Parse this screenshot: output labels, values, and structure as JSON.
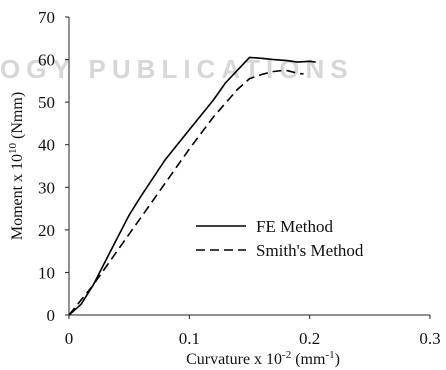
{
  "watermark": {
    "text": "OGY PUBLICATIONS"
  },
  "chart_data": {
    "type": "line",
    "xlabel": "Curvature x 10",
    "xlabel_exp": "-2",
    "xlabel_unit_prefix": " (mm",
    "xlabel_unit_exp": "-1",
    "xlabel_unit_suffix": ")",
    "ylabel": "Moment x 10",
    "ylabel_exp": "10",
    "ylabel_suffix": " (Nmm)",
    "xlim": [
      0,
      0.3
    ],
    "ylim": [
      0,
      70
    ],
    "xticks": [
      0,
      0.1,
      0.2,
      0.3
    ],
    "xtick_labels": [
      "0",
      "0.1",
      "0.2",
      "0.3"
    ],
    "yticks": [
      0,
      10,
      20,
      30,
      40,
      50,
      60,
      70
    ],
    "ytick_labels": [
      "0",
      "10",
      "20",
      "30",
      "40",
      "50",
      "60",
      "70"
    ],
    "grid": false,
    "legend_position": "center-right",
    "series": [
      {
        "name": "FE Method",
        "dash": "solid",
        "color": "#000000",
        "x": [
          0,
          0.01,
          0.02,
          0.03,
          0.04,
          0.05,
          0.06,
          0.08,
          0.1,
          0.12,
          0.13,
          0.14,
          0.15,
          0.16,
          0.17,
          0.18,
          0.19,
          0.2,
          0.205
        ],
        "y": [
          0,
          2.5,
          7,
          12.5,
          18,
          23.5,
          28,
          36.5,
          43.5,
          50.5,
          54.5,
          57.5,
          60.5,
          60.3,
          60.0,
          59.8,
          59.4,
          59.6,
          59.4
        ]
      },
      {
        "name": "Smith's Method",
        "dash": "dashed",
        "color": "#000000",
        "x": [
          0,
          0.01,
          0.02,
          0.04,
          0.06,
          0.08,
          0.1,
          0.12,
          0.14,
          0.15,
          0.16,
          0.17,
          0.18,
          0.19,
          0.195
        ],
        "y": [
          0,
          3.5,
          7,
          15,
          23,
          31,
          39,
          46.5,
          53,
          55.5,
          56.5,
          57.2,
          57.5,
          56.8,
          56.6
        ]
      }
    ]
  }
}
